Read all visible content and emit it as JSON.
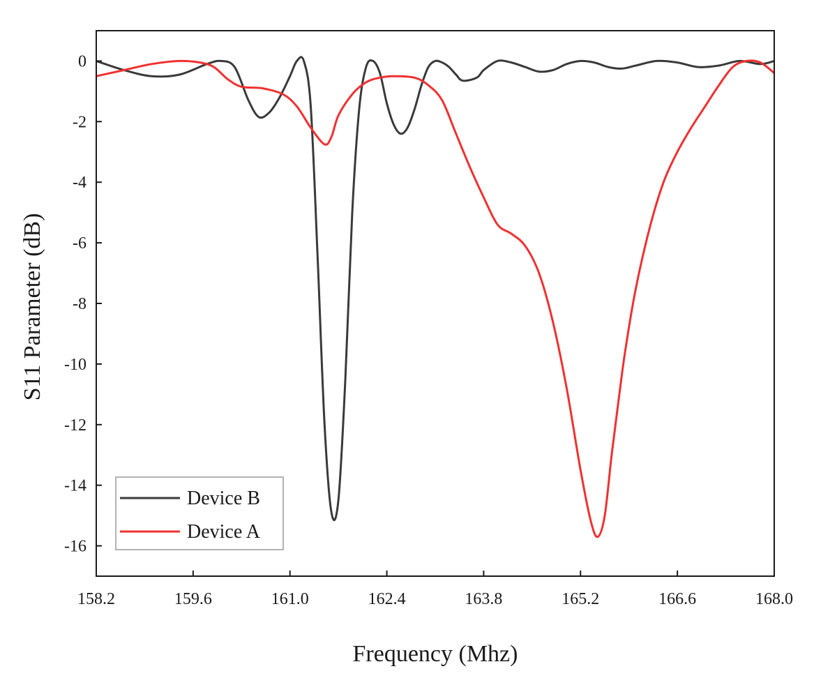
{
  "chart_data": {
    "type": "line",
    "title": "",
    "xlabel": "Frequency (Mhz)",
    "ylabel": "S11 Parameter (dB)",
    "xlim": [
      158.2,
      168.0
    ],
    "ylim": [
      -17,
      1
    ],
    "xticks": [
      "158.2",
      "159.6",
      "161.0",
      "162.4",
      "163.8",
      "165.2",
      "166.6",
      "168.0"
    ],
    "yticks": [
      "0",
      "-2",
      "-4",
      "-6",
      "-8",
      "-10",
      "-12",
      "-14",
      "-16"
    ],
    "grid": false,
    "legend": {
      "position": "bottom-left",
      "entries": [
        "Device B",
        "Device A"
      ]
    },
    "series": [
      {
        "name": "Device B",
        "color": "#3a3a3a",
        "x": [
          158.2,
          158.6,
          159.0,
          159.4,
          159.8,
          160.0,
          160.2,
          160.4,
          160.55,
          160.7,
          160.85,
          161.0,
          161.1,
          161.2,
          161.3,
          161.4,
          161.5,
          161.6,
          161.7,
          161.8,
          161.9,
          162.0,
          162.1,
          162.2,
          162.3,
          162.4,
          162.5,
          162.6,
          162.7,
          162.8,
          162.9,
          163.0,
          163.1,
          163.2,
          163.3,
          163.4,
          163.5,
          163.7,
          163.8,
          164.0,
          164.2,
          164.4,
          164.6,
          164.8,
          165.0,
          165.2,
          165.4,
          165.6,
          165.8,
          166.0,
          166.3,
          166.6,
          166.9,
          167.2,
          167.5,
          167.8,
          168.0
        ],
        "y": [
          0.0,
          -0.3,
          -0.5,
          -0.45,
          -0.1,
          0.0,
          -0.2,
          -1.3,
          -1.85,
          -1.7,
          -1.2,
          -0.5,
          0.0,
          0.0,
          -1.5,
          -6.5,
          -12.0,
          -14.9,
          -14.5,
          -10.5,
          -5.0,
          -1.6,
          -0.2,
          0.0,
          -0.4,
          -1.4,
          -2.1,
          -2.4,
          -2.2,
          -1.6,
          -0.8,
          -0.2,
          0.0,
          -0.05,
          -0.2,
          -0.45,
          -0.65,
          -0.55,
          -0.3,
          0.0,
          -0.05,
          -0.2,
          -0.35,
          -0.3,
          -0.1,
          0.0,
          -0.05,
          -0.2,
          -0.25,
          -0.15,
          0.0,
          -0.05,
          -0.2,
          -0.15,
          0.0,
          -0.1,
          0.0
        ]
      },
      {
        "name": "Device A",
        "color": "#f03030",
        "x": [
          158.2,
          158.6,
          159.0,
          159.4,
          159.7,
          159.9,
          160.1,
          160.3,
          160.6,
          160.9,
          161.1,
          161.3,
          161.5,
          161.6,
          161.7,
          161.9,
          162.1,
          162.3,
          162.5,
          162.8,
          163.0,
          163.2,
          163.4,
          163.6,
          163.8,
          164.0,
          164.2,
          164.4,
          164.6,
          164.8,
          165.0,
          165.2,
          165.35,
          165.45,
          165.55,
          165.65,
          165.75,
          165.85,
          166.0,
          166.2,
          166.4,
          166.6,
          166.8,
          167.0,
          167.2,
          167.4,
          167.6,
          167.8,
          168.0
        ],
        "y": [
          -0.5,
          -0.3,
          -0.1,
          0.0,
          -0.05,
          -0.2,
          -0.6,
          -0.85,
          -0.9,
          -1.1,
          -1.5,
          -2.2,
          -2.75,
          -2.5,
          -1.8,
          -1.1,
          -0.7,
          -0.55,
          -0.5,
          -0.55,
          -0.8,
          -1.3,
          -2.4,
          -3.5,
          -4.5,
          -5.4,
          -5.7,
          -6.1,
          -7.0,
          -8.6,
          -10.8,
          -13.5,
          -15.2,
          -15.7,
          -15.0,
          -13.0,
          -11.2,
          -9.5,
          -7.5,
          -5.5,
          -4.0,
          -3.0,
          -2.2,
          -1.5,
          -0.8,
          -0.2,
          0.0,
          -0.05,
          -0.4
        ]
      }
    ]
  }
}
